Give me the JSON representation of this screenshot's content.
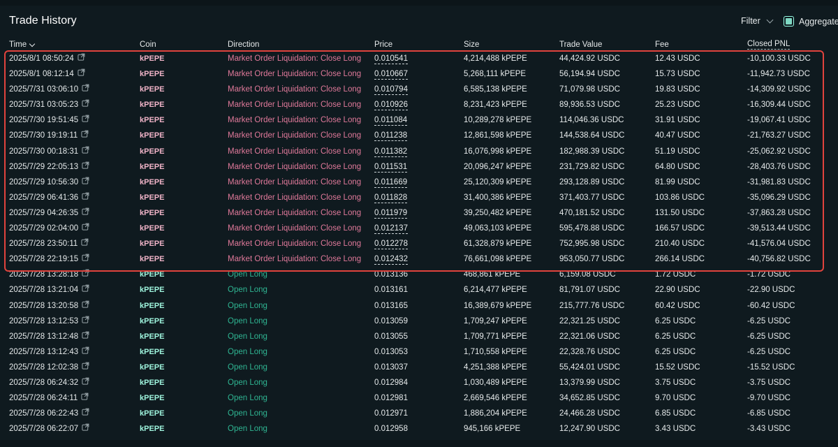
{
  "panel": {
    "title": "Trade History",
    "filter_label": "Filter",
    "aggregate_label": "Aggregate",
    "aggregate_checked": true
  },
  "columns": {
    "time": "Time",
    "coin": "Coin",
    "direction": "Direction",
    "price": "Price",
    "size": "Size",
    "trade_value": "Trade Value",
    "fee": "Fee",
    "closed_pnl": "Closed PNL"
  },
  "colors": {
    "background": "#0f1a1f",
    "liquidation_direction": "#e0799a",
    "open_long_direction": "#2fb592",
    "coin_liquidation": "#f0b4c8",
    "coin_open_long": "#9ff5de",
    "highlight_border": "#e0433d",
    "checkbox_accent": "#97fce4"
  },
  "rows": [
    {
      "time": "2025/8/1 08:50:24",
      "coin": "kPEPE",
      "direction": "Market Order Liquidation: Close Long",
      "price": "0.010541",
      "size": "4,214,488 kPEPE",
      "trade_value": "44,424.92 USDC",
      "fee": "12.43 USDC",
      "closed_pnl": "-10,100.33 USDC",
      "kind": "liquidation"
    },
    {
      "time": "2025/8/1 08:12:14",
      "coin": "kPEPE",
      "direction": "Market Order Liquidation: Close Long",
      "price": "0.010667",
      "size": "5,268,111 kPEPE",
      "trade_value": "56,194.94 USDC",
      "fee": "15.73 USDC",
      "closed_pnl": "-11,942.73 USDC",
      "kind": "liquidation"
    },
    {
      "time": "2025/7/31 03:06:10",
      "coin": "kPEPE",
      "direction": "Market Order Liquidation: Close Long",
      "price": "0.010794",
      "size": "6,585,138 kPEPE",
      "trade_value": "71,079.98 USDC",
      "fee": "19.83 USDC",
      "closed_pnl": "-14,309.92 USDC",
      "kind": "liquidation"
    },
    {
      "time": "2025/7/31 03:05:23",
      "coin": "kPEPE",
      "direction": "Market Order Liquidation: Close Long",
      "price": "0.010926",
      "size": "8,231,423 kPEPE",
      "trade_value": "89,936.53 USDC",
      "fee": "25.23 USDC",
      "closed_pnl": "-16,309.44 USDC",
      "kind": "liquidation"
    },
    {
      "time": "2025/7/30 19:51:45",
      "coin": "kPEPE",
      "direction": "Market Order Liquidation: Close Long",
      "price": "0.011084",
      "size": "10,289,278 kPEPE",
      "trade_value": "114,046.36 USDC",
      "fee": "31.91 USDC",
      "closed_pnl": "-19,067.41 USDC",
      "kind": "liquidation"
    },
    {
      "time": "2025/7/30 19:19:11",
      "coin": "kPEPE",
      "direction": "Market Order Liquidation: Close Long",
      "price": "0.011238",
      "size": "12,861,598 kPEPE",
      "trade_value": "144,538.64 USDC",
      "fee": "40.47 USDC",
      "closed_pnl": "-21,763.27 USDC",
      "kind": "liquidation"
    },
    {
      "time": "2025/7/30 00:18:31",
      "coin": "kPEPE",
      "direction": "Market Order Liquidation: Close Long",
      "price": "0.011382",
      "size": "16,076,998 kPEPE",
      "trade_value": "182,988.39 USDC",
      "fee": "51.19 USDC",
      "closed_pnl": "-25,062.92 USDC",
      "kind": "liquidation"
    },
    {
      "time": "2025/7/29 22:05:13",
      "coin": "kPEPE",
      "direction": "Market Order Liquidation: Close Long",
      "price": "0.011531",
      "size": "20,096,247 kPEPE",
      "trade_value": "231,729.82 USDC",
      "fee": "64.80 USDC",
      "closed_pnl": "-28,403.76 USDC",
      "kind": "liquidation"
    },
    {
      "time": "2025/7/29 10:56:30",
      "coin": "kPEPE",
      "direction": "Market Order Liquidation: Close Long",
      "price": "0.011669",
      "size": "25,120,309 kPEPE",
      "trade_value": "293,128.89 USDC",
      "fee": "81.99 USDC",
      "closed_pnl": "-31,981.83 USDC",
      "kind": "liquidation"
    },
    {
      "time": "2025/7/29 06:41:36",
      "coin": "kPEPE",
      "direction": "Market Order Liquidation: Close Long",
      "price": "0.011828",
      "size": "31,400,386 kPEPE",
      "trade_value": "371,403.77 USDC",
      "fee": "103.86 USDC",
      "closed_pnl": "-35,096.29 USDC",
      "kind": "liquidation"
    },
    {
      "time": "2025/7/29 04:26:35",
      "coin": "kPEPE",
      "direction": "Market Order Liquidation: Close Long",
      "price": "0.011979",
      "size": "39,250,482 kPEPE",
      "trade_value": "470,181.52 USDC",
      "fee": "131.50 USDC",
      "closed_pnl": "-37,863.28 USDC",
      "kind": "liquidation"
    },
    {
      "time": "2025/7/29 02:04:00",
      "coin": "kPEPE",
      "direction": "Market Order Liquidation: Close Long",
      "price": "0.012137",
      "size": "49,063,103 kPEPE",
      "trade_value": "595,478.88 USDC",
      "fee": "166.57 USDC",
      "closed_pnl": "-39,513.44 USDC",
      "kind": "liquidation"
    },
    {
      "time": "2025/7/28 23:50:11",
      "coin": "kPEPE",
      "direction": "Market Order Liquidation: Close Long",
      "price": "0.012278",
      "size": "61,328,879 kPEPE",
      "trade_value": "752,995.98 USDC",
      "fee": "210.40 USDC",
      "closed_pnl": "-41,576.04 USDC",
      "kind": "liquidation"
    },
    {
      "time": "2025/7/28 22:19:15",
      "coin": "kPEPE",
      "direction": "Market Order Liquidation: Close Long",
      "price": "0.012432",
      "size": "76,661,098 kPEPE",
      "trade_value": "953,050.77 USDC",
      "fee": "266.14 USDC",
      "closed_pnl": "-40,756.82 USDC",
      "kind": "liquidation"
    },
    {
      "time": "2025/7/28 13:28:18",
      "coin": "kPEPE",
      "direction": "Open Long",
      "price": "0.013136",
      "size": "468,861 kPEPE",
      "trade_value": "6,159.08 USDC",
      "fee": "1.72 USDC",
      "closed_pnl": "-1.72 USDC",
      "kind": "open"
    },
    {
      "time": "2025/7/28 13:21:04",
      "coin": "kPEPE",
      "direction": "Open Long",
      "price": "0.013161",
      "size": "6,214,477 kPEPE",
      "trade_value": "81,791.07 USDC",
      "fee": "22.90 USDC",
      "closed_pnl": "-22.90 USDC",
      "kind": "open"
    },
    {
      "time": "2025/7/28 13:20:58",
      "coin": "kPEPE",
      "direction": "Open Long",
      "price": "0.013165",
      "size": "16,389,679 kPEPE",
      "trade_value": "215,777.76 USDC",
      "fee": "60.42 USDC",
      "closed_pnl": "-60.42 USDC",
      "kind": "open"
    },
    {
      "time": "2025/7/28 13:12:53",
      "coin": "kPEPE",
      "direction": "Open Long",
      "price": "0.013059",
      "size": "1,709,247 kPEPE",
      "trade_value": "22,321.25 USDC",
      "fee": "6.25 USDC",
      "closed_pnl": "-6.25 USDC",
      "kind": "open"
    },
    {
      "time": "2025/7/28 13:12:48",
      "coin": "kPEPE",
      "direction": "Open Long",
      "price": "0.013055",
      "size": "1,709,771 kPEPE",
      "trade_value": "22,321.06 USDC",
      "fee": "6.25 USDC",
      "closed_pnl": "-6.25 USDC",
      "kind": "open"
    },
    {
      "time": "2025/7/28 13:12:43",
      "coin": "kPEPE",
      "direction": "Open Long",
      "price": "0.013053",
      "size": "1,710,558 kPEPE",
      "trade_value": "22,328.76 USDC",
      "fee": "6.25 USDC",
      "closed_pnl": "-6.25 USDC",
      "kind": "open"
    },
    {
      "time": "2025/7/28 12:02:38",
      "coin": "kPEPE",
      "direction": "Open Long",
      "price": "0.013037",
      "size": "4,251,388 kPEPE",
      "trade_value": "55,424.01 USDC",
      "fee": "15.52 USDC",
      "closed_pnl": "-15.52 USDC",
      "kind": "open"
    },
    {
      "time": "2025/7/28 06:24:32",
      "coin": "kPEPE",
      "direction": "Open Long",
      "price": "0.012984",
      "size": "1,030,489 kPEPE",
      "trade_value": "13,379.99 USDC",
      "fee": "3.75 USDC",
      "closed_pnl": "-3.75 USDC",
      "kind": "open"
    },
    {
      "time": "2025/7/28 06:24:11",
      "coin": "kPEPE",
      "direction": "Open Long",
      "price": "0.012981",
      "size": "2,669,546 kPEPE",
      "trade_value": "34,652.85 USDC",
      "fee": "9.70 USDC",
      "closed_pnl": "-9.70 USDC",
      "kind": "open"
    },
    {
      "time": "2025/7/28 06:22:43",
      "coin": "kPEPE",
      "direction": "Open Long",
      "price": "0.012971",
      "size": "1,886,204 kPEPE",
      "trade_value": "24,466.28 USDC",
      "fee": "6.85 USDC",
      "closed_pnl": "-6.85 USDC",
      "kind": "open"
    },
    {
      "time": "2025/7/28 06:22:07",
      "coin": "kPEPE",
      "direction": "Open Long",
      "price": "0.012958",
      "size": "945,166 kPEPE",
      "trade_value": "12,247.90 USDC",
      "fee": "3.43 USDC",
      "closed_pnl": "-3.43 USDC",
      "kind": "open"
    }
  ]
}
